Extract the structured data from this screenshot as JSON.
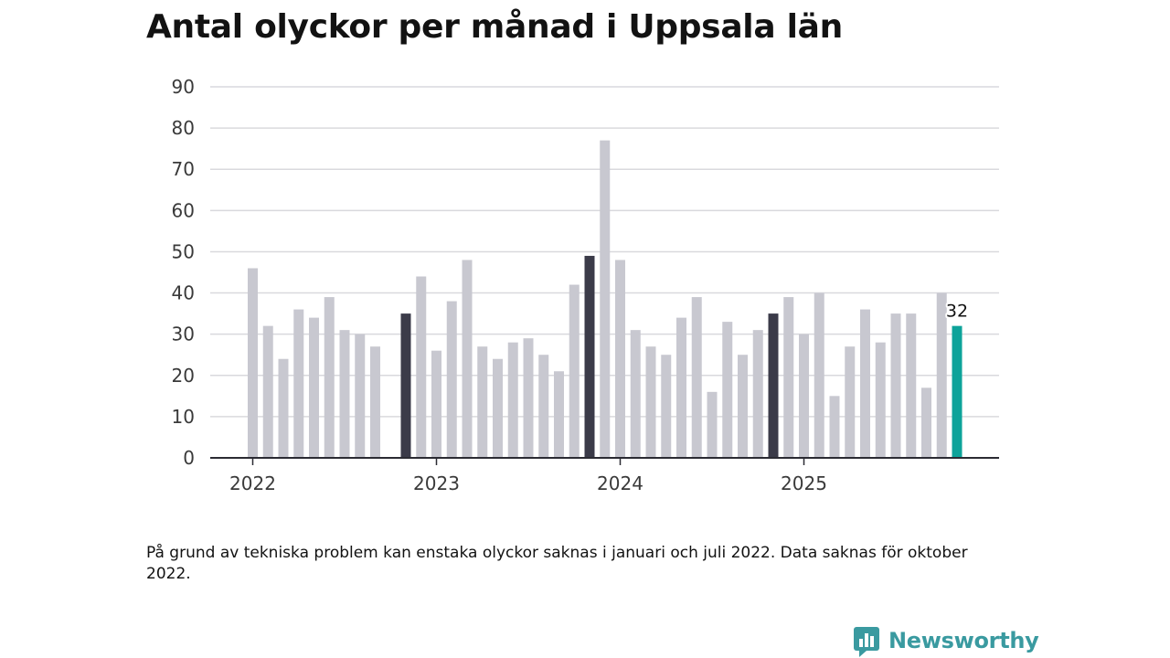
{
  "chart_data": {
    "type": "bar",
    "title": "Antal olyckor per månad i Uppsala län",
    "xlabel": "",
    "ylabel": "",
    "ylim": [
      0,
      90
    ],
    "yticks": [
      0,
      10,
      20,
      30,
      40,
      50,
      60,
      70,
      80,
      90
    ],
    "grid": true,
    "year_labels": [
      {
        "label": "2022",
        "index": 0
      },
      {
        "label": "2023",
        "index": 12
      },
      {
        "label": "2024",
        "index": 24
      },
      {
        "label": "2025",
        "index": 36
      }
    ],
    "categories": [
      "2022-01",
      "2022-02",
      "2022-03",
      "2022-04",
      "2022-05",
      "2022-06",
      "2022-07",
      "2022-08",
      "2022-09",
      "2022-10",
      "2022-11",
      "2022-12",
      "2023-01",
      "2023-02",
      "2023-03",
      "2023-04",
      "2023-05",
      "2023-06",
      "2023-07",
      "2023-08",
      "2023-09",
      "2023-10",
      "2023-11",
      "2023-12",
      "2024-01",
      "2024-02",
      "2024-03",
      "2024-04",
      "2024-05",
      "2024-06",
      "2024-07",
      "2024-08",
      "2024-09",
      "2024-10",
      "2024-11",
      "2024-12",
      "2025-01",
      "2025-02",
      "2025-03",
      "2025-04",
      "2025-05",
      "2025-06",
      "2025-07",
      "2025-08",
      "2025-09",
      "2025-10",
      "2025-11"
    ],
    "values": [
      46,
      32,
      24,
      36,
      34,
      39,
      31,
      30,
      27,
      null,
      35,
      44,
      26,
      38,
      48,
      27,
      24,
      28,
      29,
      25,
      21,
      42,
      49,
      77,
      48,
      31,
      27,
      25,
      34,
      39,
      16,
      33,
      25,
      31,
      35,
      39,
      30,
      40,
      15,
      27,
      36,
      28,
      35,
      35,
      17,
      40,
      32
    ],
    "highlight_dark_indices": [
      10,
      22,
      34
    ],
    "highlight_last_index": 46,
    "data_label": "32",
    "colors": {
      "default_bar": "#c8c8d0",
      "dark_bar": "#3b3b49",
      "latest_bar": "#0da39a",
      "grid": "#d9d9dd",
      "axis": "#2b2b33"
    }
  },
  "footnote": "På grund av tekniska problem kan enstaka olyckor saknas i januari och juli 2022. Data saknas för oktober 2022.",
  "brand": {
    "name": "Newsworthy",
    "icon": "bar-chart-speech-bubble-icon",
    "color": "#3a9aa0"
  }
}
